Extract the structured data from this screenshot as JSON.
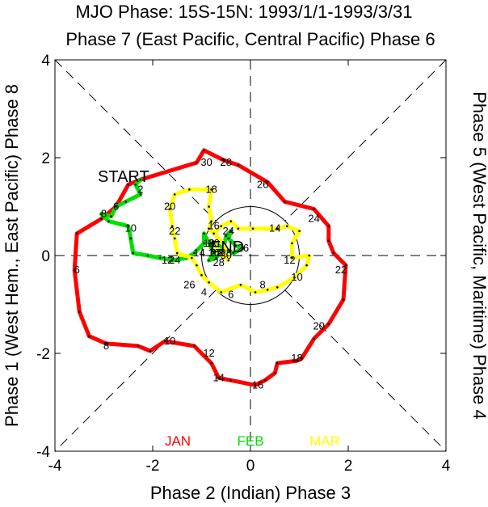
{
  "chart_data": {
    "type": "line",
    "title": "MJO Phase: 15S-15N: 1993/1/1-1993/3/31",
    "top_label": "Phase 7 (East Pacific, Central Pacific) Phase 6",
    "bottom_label": "Phase 2 (Indian) Phase 3",
    "left_label": "Phase 1 (West Hem., East Pacific) Phase 8",
    "right_label": "Phase 5 (West Pacific, Maritime) Phase 4",
    "xlim": [
      -4,
      4
    ],
    "ylim": [
      -4,
      4
    ],
    "x_ticks": [
      "-4",
      "-2",
      "0",
      "2",
      "4"
    ],
    "y_ticks": [
      "4",
      "2",
      "0",
      "-2",
      "-4"
    ],
    "start_label": "START",
    "end_label": "END",
    "series": [
      {
        "name": "JAN",
        "color": "#ff0000",
        "points": [
          [
            -2.5,
            1.45
          ],
          [
            -2.25,
            1.55
          ],
          [
            -1.1,
            1.9
          ],
          [
            -0.95,
            2.15
          ],
          [
            -0.55,
            1.95
          ],
          [
            -0.25,
            1.85
          ],
          [
            0.35,
            1.5
          ],
          [
            0.7,
            1.1
          ],
          [
            1.3,
            0.95
          ],
          [
            1.6,
            0.6
          ],
          [
            1.6,
            0.3
          ],
          [
            1.7,
            0.05
          ],
          [
            1.95,
            -0.2
          ],
          [
            1.9,
            -0.9
          ],
          [
            1.6,
            -1.4
          ],
          [
            1.3,
            -1.7
          ],
          [
            1.05,
            -2.1
          ],
          [
            0.95,
            -2.15
          ],
          [
            0.55,
            -2.2
          ],
          [
            0.5,
            -2.4
          ],
          [
            0.3,
            -2.55
          ],
          [
            0.1,
            -2.65
          ],
          [
            -0.4,
            -2.55
          ],
          [
            -0.65,
            -2.5
          ],
          [
            -0.8,
            -2.2
          ],
          [
            -1.15,
            -1.85
          ],
          [
            -1.75,
            -1.75
          ],
          [
            -2.05,
            -1.95
          ],
          [
            -2.3,
            -1.85
          ],
          [
            -2.95,
            -1.8
          ],
          [
            -3.3,
            -1.65
          ],
          [
            -3.5,
            -1.15
          ],
          [
            -3.6,
            -0.3
          ],
          [
            -3.55,
            0.45
          ],
          [
            -3.05,
            0.75
          ],
          [
            -2.75,
            1.0
          ],
          [
            -2.5,
            1.45
          ]
        ],
        "day_labels": [
          {
            "text": "26",
            "x": 0.25,
            "y": 1.45
          },
          {
            "text": "28",
            "x": -0.5,
            "y": 1.9
          },
          {
            "text": "30",
            "x": -0.9,
            "y": 1.9
          },
          {
            "text": "24",
            "x": 1.3,
            "y": 0.75
          },
          {
            "text": "22",
            "x": 1.85,
            "y": -0.3
          },
          {
            "text": "20",
            "x": 1.4,
            "y": -1.45
          },
          {
            "text": "18",
            "x": 0.95,
            "y": -2.1
          },
          {
            "text": "16",
            "x": 0.15,
            "y": -2.65
          },
          {
            "text": "14",
            "x": -0.65,
            "y": -2.5
          },
          {
            "text": "12",
            "x": -0.85,
            "y": -2.0
          },
          {
            "text": "10",
            "x": -1.65,
            "y": -1.75
          },
          {
            "text": "8",
            "x": -2.95,
            "y": -1.85
          },
          {
            "text": "6",
            "x": -3.55,
            "y": -0.3
          }
        ]
      },
      {
        "name": "FEB",
        "color": "#00e000",
        "points": [
          [
            -2.25,
            1.55
          ],
          [
            -2.35,
            1.45
          ],
          [
            -2.25,
            1.25
          ],
          [
            -2.55,
            1.1
          ],
          [
            -2.75,
            1.0
          ],
          [
            -2.85,
            0.8
          ],
          [
            -3.05,
            0.85
          ],
          [
            -2.9,
            0.7
          ],
          [
            -2.5,
            0.6
          ],
          [
            -2.45,
            0.35
          ],
          [
            -2.4,
            0.05
          ],
          [
            -2.1,
            0.0
          ],
          [
            -1.85,
            -0.05
          ],
          [
            -1.6,
            -0.1
          ],
          [
            -1.3,
            -0.05
          ],
          [
            -1.15,
            0.05
          ],
          [
            -0.95,
            0.25
          ],
          [
            -0.95,
            0.45
          ],
          [
            -0.85,
            0.25
          ],
          [
            -0.75,
            0.05
          ],
          [
            -0.85,
            -0.1
          ],
          [
            -0.7,
            -0.05
          ],
          [
            -0.55,
            0.15
          ],
          [
            -0.5,
            0.4
          ],
          [
            -0.4,
            0.5
          ],
          [
            -0.45,
            0.35
          ],
          [
            -0.3,
            0.2
          ],
          [
            -0.15,
            0.15
          ],
          [
            -0.35,
            0.05
          ],
          [
            -0.55,
            0.15
          ],
          [
            -0.75,
            0.25
          ]
        ],
        "day_labels": [
          {
            "text": "2",
            "x": -2.25,
            "y": 1.35
          },
          {
            "text": "6",
            "x": -2.75,
            "y": 1.0
          },
          {
            "text": "8",
            "x": -3.0,
            "y": 0.85
          },
          {
            "text": "10",
            "x": -2.45,
            "y": 0.55
          },
          {
            "text": "12",
            "x": -1.7,
            "y": -0.1
          },
          {
            "text": "14",
            "x": -1.05,
            "y": 0.05
          },
          {
            "text": "16",
            "x": -0.75,
            "y": 0.05
          },
          {
            "text": "18",
            "x": -0.85,
            "y": 0.25
          },
          {
            "text": "20",
            "x": -0.75,
            "y": 0.25
          },
          {
            "text": "22",
            "x": -0.7,
            "y": 0.05
          },
          {
            "text": "24",
            "x": -0.45,
            "y": 0.5
          },
          {
            "text": "26",
            "x": -0.15,
            "y": 0.15
          },
          {
            "text": "28",
            "x": -0.5,
            "y": 0.05
          }
        ]
      },
      {
        "name": "MAR",
        "color": "#ffff00",
        "points": [
          [
            -0.75,
            0.25
          ],
          [
            -0.6,
            0.05
          ],
          [
            -0.45,
            -0.1
          ],
          [
            -0.55,
            0.25
          ],
          [
            -0.75,
            0.45
          ],
          [
            -0.6,
            0.6
          ],
          [
            -0.4,
            0.7
          ],
          [
            -0.25,
            0.55
          ],
          [
            0.05,
            0.55
          ],
          [
            0.55,
            0.55
          ],
          [
            0.75,
            0.6
          ],
          [
            1.0,
            0.5
          ],
          [
            0.85,
            0.25
          ],
          [
            0.85,
            -0.05
          ],
          [
            1.2,
            0.0
          ],
          [
            1.15,
            -0.2
          ],
          [
            0.9,
            -0.45
          ],
          [
            0.55,
            -0.65
          ],
          [
            0.35,
            -0.7
          ],
          [
            0.1,
            -0.75
          ],
          [
            -0.2,
            -0.6
          ],
          [
            -0.6,
            -0.75
          ],
          [
            -0.85,
            -0.55
          ],
          [
            -1.0,
            -0.4
          ],
          [
            -1.1,
            -0.2
          ],
          [
            -1.2,
            -0.05
          ],
          [
            -1.5,
            0.05
          ],
          [
            -1.55,
            0.35
          ],
          [
            -1.6,
            0.6
          ],
          [
            -1.65,
            0.95
          ],
          [
            -1.55,
            1.25
          ],
          [
            -1.25,
            1.35
          ],
          [
            -0.8,
            1.35
          ],
          [
            -0.85,
            1.0
          ],
          [
            -0.8,
            0.7
          ],
          [
            -0.85,
            0.55
          ],
          [
            -0.75,
            0.45
          ],
          [
            -0.55,
            0.25
          ]
        ],
        "day_labels": [
          {
            "text": "2",
            "x": -0.6,
            "y": 0.05
          },
          {
            "text": "4",
            "x": -0.95,
            "y": -0.75
          },
          {
            "text": "6",
            "x": -0.4,
            "y": -0.8
          },
          {
            "text": "8",
            "x": 0.25,
            "y": -0.6
          },
          {
            "text": "10",
            "x": 0.95,
            "y": -0.45
          },
          {
            "text": "12",
            "x": 0.8,
            "y": -0.1
          },
          {
            "text": "14",
            "x": 0.5,
            "y": 0.55
          },
          {
            "text": "16",
            "x": -0.75,
            "y": 0.6
          },
          {
            "text": "18",
            "x": -0.8,
            "y": 1.35
          },
          {
            "text": "20",
            "x": -1.65,
            "y": 1.0
          },
          {
            "text": "22",
            "x": -1.55,
            "y": 0.5
          },
          {
            "text": "24",
            "x": -1.55,
            "y": -0.1
          },
          {
            "text": "26",
            "x": -1.25,
            "y": -0.6
          },
          {
            "text": "28",
            "x": -0.65,
            "y": -0.15
          },
          {
            "text": "30",
            "x": -0.5,
            "y": 0.0
          }
        ]
      }
    ],
    "legend": {
      "placement": "bottom-center"
    },
    "unit_circle_radius": 1
  }
}
